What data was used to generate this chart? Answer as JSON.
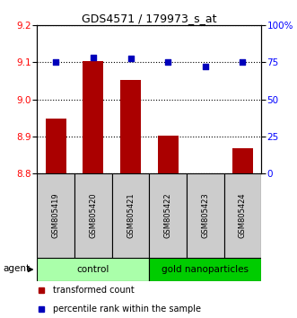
{
  "title": "GDS4571 / 179973_s_at",
  "samples": [
    "GSM805419",
    "GSM805420",
    "GSM805421",
    "GSM805422",
    "GSM805423",
    "GSM805424"
  ],
  "bar_values": [
    8.948,
    9.103,
    9.052,
    8.902,
    8.8,
    8.868
  ],
  "percentile_values": [
    75.0,
    78.5,
    77.5,
    75.5,
    72.5,
    75.0
  ],
  "ylim_left": [
    8.8,
    9.2
  ],
  "ylim_right": [
    0,
    100
  ],
  "yticks_left": [
    8.8,
    8.9,
    9.0,
    9.1,
    9.2
  ],
  "yticks_right": [
    0,
    25,
    50,
    75,
    100
  ],
  "ytick_labels_right": [
    "0",
    "25",
    "50",
    "75",
    "100%"
  ],
  "bar_color": "#AA0000",
  "dot_color": "#0000BB",
  "bar_bottom": 8.8,
  "groups": [
    {
      "label": "control",
      "indices": [
        0,
        1,
        2
      ],
      "color": "#AAFFAA"
    },
    {
      "label": "gold nanoparticles",
      "indices": [
        3,
        4,
        5
      ],
      "color": "#00CC00"
    }
  ],
  "agent_label": "agent",
  "legend_items": [
    {
      "label": "transformed count",
      "color": "#AA0000"
    },
    {
      "label": "percentile rank within the sample",
      "color": "#0000BB"
    }
  ],
  "sample_box_color": "#CCCCCC",
  "title_fontsize": 9,
  "axis_fontsize": 7.5,
  "sample_fontsize": 6,
  "group_fontsize": 7.5,
  "legend_fontsize": 7
}
